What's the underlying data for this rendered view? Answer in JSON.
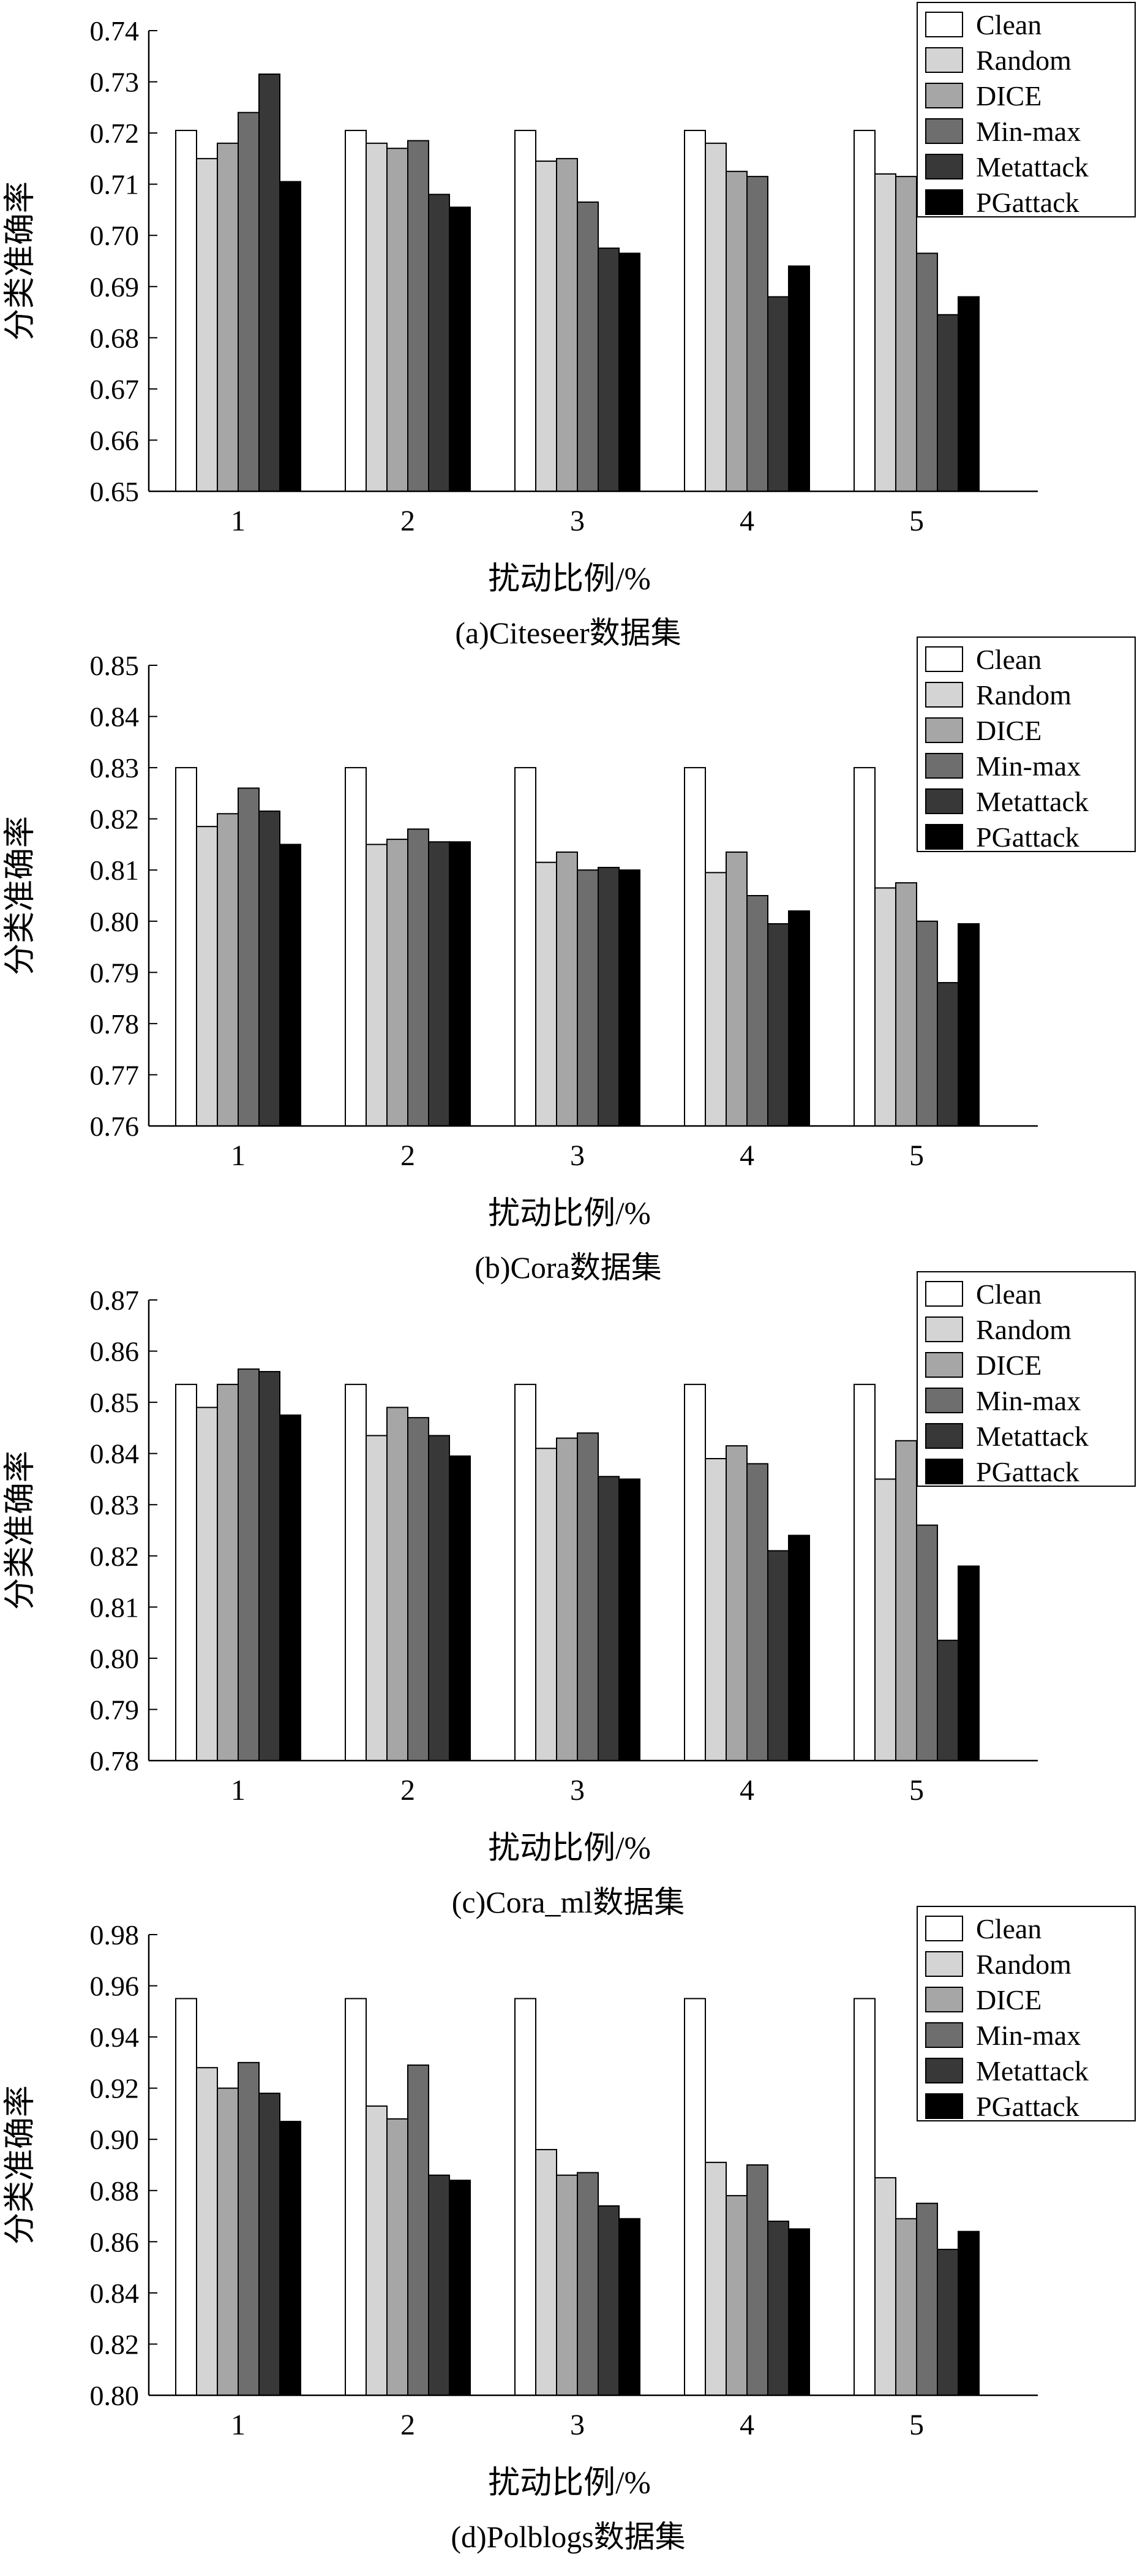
{
  "legend_entries": [
    "Clean",
    "Random",
    "DICE",
    "Min-max",
    "Metattack",
    "PGattack"
  ],
  "series_colors": [
    "#ffffff",
    "#d4d4d4",
    "#a6a6a6",
    "#6e6e6e",
    "#383838",
    "#000000"
  ],
  "chart_data": [
    {
      "type": "bar",
      "caption": "(a)Citeseer数据集",
      "xlabel": "扰动比例/%",
      "ylabel": "分类准确率",
      "categories": [
        "1",
        "2",
        "3",
        "4",
        "5"
      ],
      "ylim": [
        0.65,
        0.74
      ],
      "yticks": [
        "0.65",
        "0.66",
        "0.67",
        "0.68",
        "0.69",
        "0.70",
        "0.71",
        "0.72",
        "0.73",
        "0.74"
      ],
      "legend_position": "top-right",
      "series": [
        {
          "name": "Clean",
          "values": [
            0.7205,
            0.7205,
            0.7205,
            0.7205,
            0.7205
          ]
        },
        {
          "name": "Random",
          "values": [
            0.715,
            0.718,
            0.7145,
            0.718,
            0.712
          ]
        },
        {
          "name": "DICE",
          "values": [
            0.718,
            0.717,
            0.715,
            0.7125,
            0.7115
          ]
        },
        {
          "name": "Min-max",
          "values": [
            0.724,
            0.7185,
            0.7065,
            0.7115,
            0.6965
          ]
        },
        {
          "name": "Metattack",
          "values": [
            0.7315,
            0.708,
            0.6975,
            0.688,
            0.6845
          ]
        },
        {
          "name": "PGattack",
          "values": [
            0.7105,
            0.7055,
            0.6965,
            0.694,
            0.688
          ]
        }
      ]
    },
    {
      "type": "bar",
      "caption": "(b)Cora数据集",
      "xlabel": "扰动比例/%",
      "ylabel": "分类准确率",
      "categories": [
        "1",
        "2",
        "3",
        "4",
        "5"
      ],
      "ylim": [
        0.76,
        0.85
      ],
      "yticks": [
        "0.76",
        "0.77",
        "0.78",
        "0.79",
        "0.80",
        "0.81",
        "0.82",
        "0.83",
        "0.84",
        "0.85"
      ],
      "legend_position": "top-right",
      "series": [
        {
          "name": "Clean",
          "values": [
            0.83,
            0.83,
            0.83,
            0.83,
            0.83
          ]
        },
        {
          "name": "Random",
          "values": [
            0.8185,
            0.815,
            0.8115,
            0.8095,
            0.8065
          ]
        },
        {
          "name": "DICE",
          "values": [
            0.821,
            0.816,
            0.8135,
            0.8135,
            0.8075
          ]
        },
        {
          "name": "Min-max",
          "values": [
            0.826,
            0.818,
            0.81,
            0.805,
            0.8
          ]
        },
        {
          "name": "Metattack",
          "values": [
            0.8215,
            0.8155,
            0.8105,
            0.7995,
            0.788
          ]
        },
        {
          "name": "PGattack",
          "values": [
            0.815,
            0.8155,
            0.81,
            0.802,
            0.7995
          ]
        }
      ]
    },
    {
      "type": "bar",
      "caption": "(c)Cora_ml数据集",
      "xlabel": "扰动比例/%",
      "ylabel": "分类准确率",
      "categories": [
        "1",
        "2",
        "3",
        "4",
        "5"
      ],
      "ylim": [
        0.78,
        0.87
      ],
      "yticks": [
        "0.78",
        "0.79",
        "0.80",
        "0.81",
        "0.82",
        "0.83",
        "0.84",
        "0.85",
        "0.86",
        "0.87"
      ],
      "legend_position": "top-right",
      "series": [
        {
          "name": "Clean",
          "values": [
            0.8535,
            0.8535,
            0.8535,
            0.8535,
            0.8535
          ]
        },
        {
          "name": "Random",
          "values": [
            0.849,
            0.8435,
            0.841,
            0.839,
            0.835
          ]
        },
        {
          "name": "DICE",
          "values": [
            0.8535,
            0.849,
            0.843,
            0.8415,
            0.8425
          ]
        },
        {
          "name": "Min-max",
          "values": [
            0.8565,
            0.847,
            0.844,
            0.838,
            0.826
          ]
        },
        {
          "name": "Metattack",
          "values": [
            0.856,
            0.8435,
            0.8355,
            0.821,
            0.8035
          ]
        },
        {
          "name": "PGattack",
          "values": [
            0.8475,
            0.8395,
            0.835,
            0.824,
            0.818
          ]
        }
      ]
    },
    {
      "type": "bar",
      "caption": "(d)Polblogs数据集",
      "xlabel": "扰动比例/%",
      "ylabel": "分类准确率",
      "categories": [
        "1",
        "2",
        "3",
        "4",
        "5"
      ],
      "ylim": [
        0.8,
        0.98
      ],
      "yticks": [
        "0.80",
        "0.82",
        "0.84",
        "0.86",
        "0.88",
        "0.90",
        "0.92",
        "0.94",
        "0.96",
        "0.98"
      ],
      "legend_position": "top-right",
      "series": [
        {
          "name": "Clean",
          "values": [
            0.955,
            0.955,
            0.955,
            0.955,
            0.955
          ]
        },
        {
          "name": "Random",
          "values": [
            0.928,
            0.913,
            0.896,
            0.891,
            0.885
          ]
        },
        {
          "name": "DICE",
          "values": [
            0.92,
            0.908,
            0.886,
            0.878,
            0.869
          ]
        },
        {
          "name": "Min-max",
          "values": [
            0.93,
            0.929,
            0.887,
            0.89,
            0.875
          ]
        },
        {
          "name": "Metattack",
          "values": [
            0.918,
            0.886,
            0.874,
            0.868,
            0.857
          ]
        },
        {
          "name": "PGattack",
          "values": [
            0.907,
            0.884,
            0.869,
            0.865,
            0.864
          ]
        }
      ]
    }
  ]
}
